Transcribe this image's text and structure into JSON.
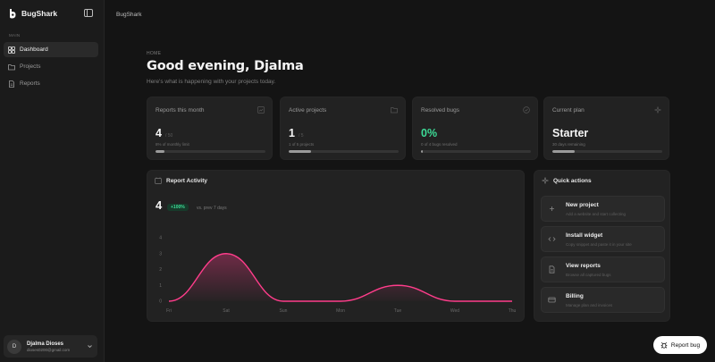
{
  "sidebar": {
    "brand": "BugShark",
    "section_label": "MAIN",
    "items": [
      {
        "label": "Dashboard",
        "icon": "grid-icon",
        "active": true
      },
      {
        "label": "Projects",
        "icon": "folder-icon",
        "active": false
      },
      {
        "label": "Reports",
        "icon": "file-icon",
        "active": false
      }
    ],
    "user": {
      "initial": "D",
      "name": "Djalma Dioses",
      "email": "dioses0200@gmail.com"
    }
  },
  "topbar": {
    "title": "BugShark"
  },
  "header": {
    "breadcrumb": "HOME",
    "greeting": "Good evening, Djalma",
    "subtext": "Here's what is happening with your projects today."
  },
  "stats": [
    {
      "title": "Reports this month",
      "value": "4",
      "unit": "/ 50",
      "sub": "8% of monthly limit",
      "progress": 0.08,
      "icon": "chart-icon"
    },
    {
      "title": "Active projects",
      "value": "1",
      "unit": "/ 5",
      "sub": "1 of 5 projects",
      "progress": 0.2,
      "icon": "folder-icon"
    },
    {
      "title": "Resolved bugs",
      "value": "0%",
      "unit": "",
      "sub": "0 of 4 bugs resolved",
      "progress": 0.0,
      "icon": "check-circle-icon"
    },
    {
      "title": "Current plan",
      "value": "Starter",
      "unit": "",
      "sub": "30 days remaining",
      "progress": 0.2,
      "icon": "sparkle-icon"
    }
  ],
  "activity": {
    "title": "Report Activity",
    "total": "4",
    "change": "+100%",
    "change_text": "vs. prev 7 days"
  },
  "chart_data": {
    "type": "area",
    "categories": [
      "Fri",
      "Sat",
      "Sun",
      "Mon",
      "Tue",
      "Wed",
      "Thu"
    ],
    "series": [
      {
        "values": [
          0,
          3,
          0,
          0,
          1,
          0,
          0
        ]
      }
    ],
    "yticks": [
      "0",
      "1",
      "2",
      "3",
      "4"
    ],
    "ylim": [
      0,
      4
    ],
    "color": "#ff3d8b"
  },
  "quick_actions": {
    "title": "Quick actions",
    "items": [
      {
        "title": "New project",
        "desc": "Add a website and start collecting",
        "icon": "plus-icon"
      },
      {
        "title": "Install widget",
        "desc": "Copy snippet and paste it in your site",
        "icon": "code-icon"
      },
      {
        "title": "View reports",
        "desc": "Browse all captured bugs",
        "icon": "file-icon"
      },
      {
        "title": "Billing",
        "desc": "Manage plan and invoices",
        "icon": "card-icon"
      }
    ]
  },
  "report_button": {
    "label": "Report bug"
  }
}
